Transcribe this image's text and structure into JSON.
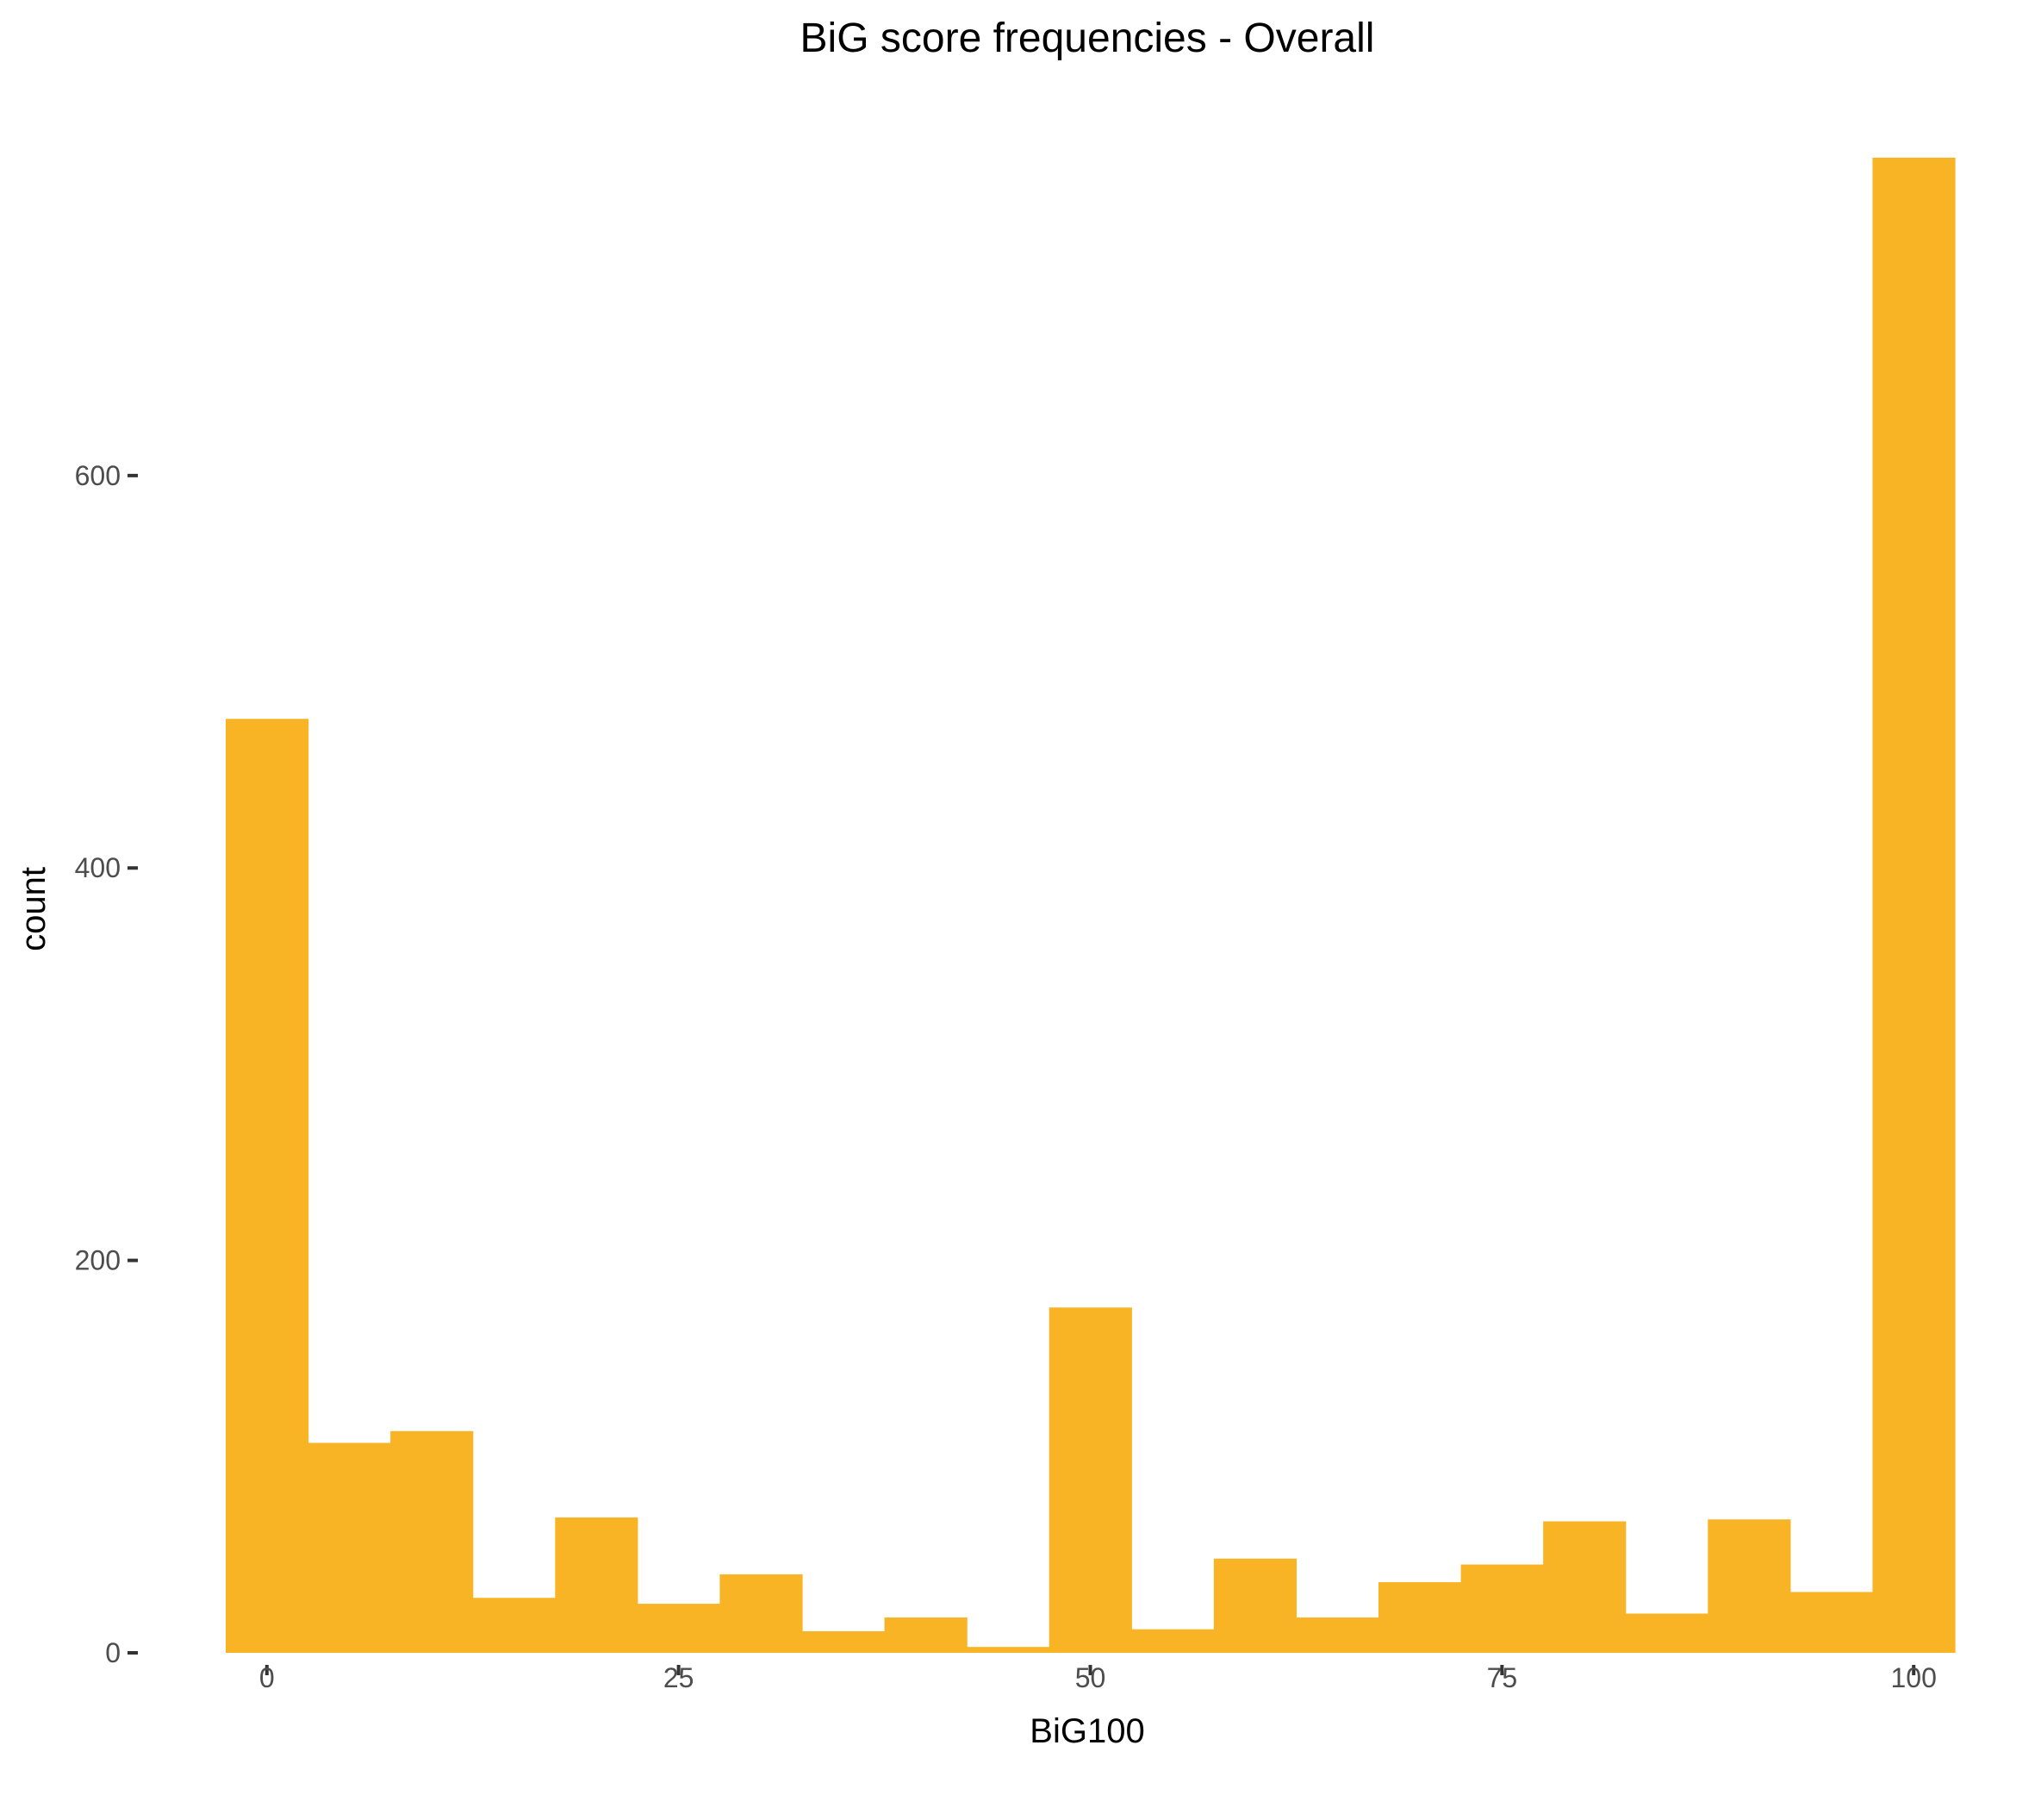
{
  "chart_data": {
    "type": "bar",
    "title": "BiG score frequencies - Overall",
    "xlabel": "BiG100",
    "ylabel": "count",
    "bin_width": 5,
    "bin_centers": [
      0,
      5,
      10,
      15,
      20,
      25,
      30,
      35,
      40,
      45,
      50,
      55,
      60,
      65,
      70,
      75,
      80,
      85,
      90,
      95,
      100
    ],
    "values": [
      476,
      107,
      113,
      28,
      69,
      25,
      40,
      11,
      18,
      3,
      176,
      12,
      48,
      18,
      36,
      45,
      67,
      20,
      68,
      31,
      762
    ],
    "xlim": [
      -2.5,
      102.5
    ],
    "ylim": [
      0,
      762
    ],
    "x_ticks": [
      0,
      25,
      50,
      75,
      100
    ],
    "x_tick_labels": [
      "0",
      "25",
      "50",
      "75",
      "100"
    ],
    "y_ticks": [
      0,
      200,
      400,
      600
    ],
    "y_tick_labels": [
      "0",
      "200",
      "400",
      "600"
    ],
    "grid": false,
    "legend": "none",
    "bar_color": "#F8B425"
  }
}
